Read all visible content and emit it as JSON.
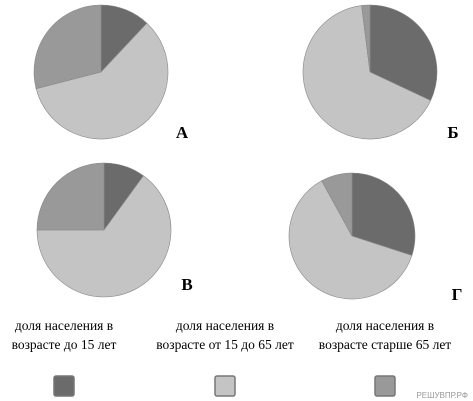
{
  "chart_data": [
    {
      "type": "pie",
      "label": "А",
      "values": [
        12,
        59,
        29
      ]
    },
    {
      "type": "pie",
      "label": "Б",
      "values": [
        32,
        66,
        2
      ]
    },
    {
      "type": "pie",
      "label": "В",
      "values": [
        10,
        65,
        25
      ]
    },
    {
      "type": "pie",
      "label": "Г",
      "values": [
        30,
        62,
        8
      ]
    }
  ],
  "legend": [
    {
      "lines": [
        "доля населения в",
        "возрасте до 15 лет"
      ],
      "color": "#6b6b6b"
    },
    {
      "lines": [
        "доля населения в",
        "возрасте от 15 до 65 лет"
      ],
      "color": "#c4c4c4"
    },
    {
      "lines": [
        "доля населения в",
        "возрасте старше 65 лет"
      ],
      "color": "#999999"
    }
  ],
  "watermark": "РЕШУВПР.РФ"
}
